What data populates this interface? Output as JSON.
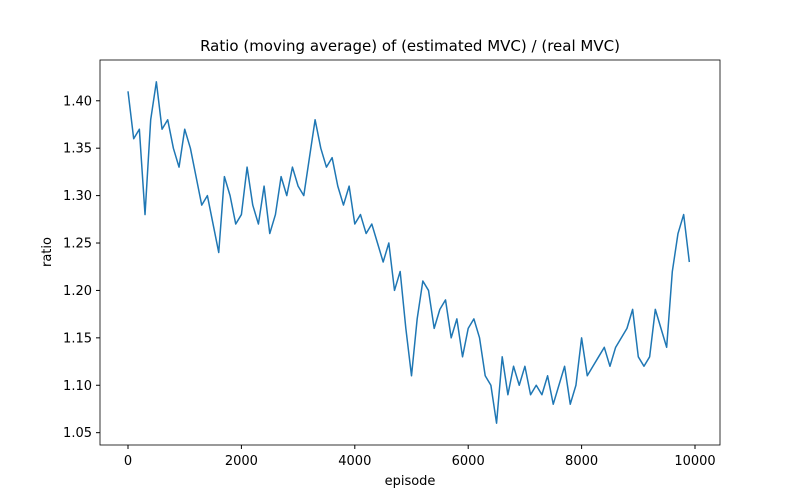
{
  "chart_data": {
    "type": "line",
    "title": "Ratio (moving average) of (estimated MVC) / (real MVC)",
    "xlabel": "episode",
    "ylabel": "ratio",
    "color": "#1f77b4",
    "x": [
      0,
      100,
      200,
      300,
      400,
      500,
      600,
      700,
      800,
      900,
      1000,
      1100,
      1200,
      1300,
      1400,
      1500,
      1600,
      1700,
      1800,
      1900,
      2000,
      2100,
      2200,
      2300,
      2400,
      2500,
      2600,
      2700,
      2800,
      2900,
      3000,
      3100,
      3200,
      3300,
      3400,
      3500,
      3600,
      3700,
      3800,
      3900,
      4000,
      4100,
      4200,
      4300,
      4400,
      4500,
      4600,
      4700,
      4800,
      4900,
      5000,
      5100,
      5200,
      5300,
      5400,
      5500,
      5600,
      5700,
      5800,
      5900,
      6000,
      6100,
      6200,
      6300,
      6400,
      6500,
      6600,
      6700,
      6800,
      6900,
      7000,
      7100,
      7200,
      7300,
      7400,
      7500,
      7600,
      7700,
      7800,
      7900,
      8000,
      8100,
      8200,
      8300,
      8400,
      8500,
      8600,
      8700,
      8800,
      8900,
      9000,
      9100,
      9200,
      9300,
      9400,
      9500,
      9600,
      9700,
      9800,
      9900
    ],
    "values": [
      1.41,
      1.36,
      1.37,
      1.28,
      1.38,
      1.42,
      1.37,
      1.38,
      1.35,
      1.33,
      1.37,
      1.35,
      1.32,
      1.29,
      1.3,
      1.27,
      1.24,
      1.32,
      1.3,
      1.27,
      1.28,
      1.33,
      1.29,
      1.27,
      1.31,
      1.26,
      1.28,
      1.32,
      1.3,
      1.33,
      1.31,
      1.3,
      1.34,
      1.38,
      1.35,
      1.33,
      1.34,
      1.31,
      1.29,
      1.31,
      1.27,
      1.28,
      1.26,
      1.27,
      1.25,
      1.23,
      1.25,
      1.2,
      1.22,
      1.16,
      1.11,
      1.17,
      1.21,
      1.2,
      1.16,
      1.18,
      1.19,
      1.15,
      1.17,
      1.13,
      1.16,
      1.17,
      1.15,
      1.11,
      1.1,
      1.06,
      1.13,
      1.09,
      1.12,
      1.1,
      1.12,
      1.09,
      1.1,
      1.09,
      1.11,
      1.08,
      1.1,
      1.12,
      1.08,
      1.1,
      1.15,
      1.11,
      1.12,
      1.13,
      1.14,
      1.12,
      1.14,
      1.15,
      1.16,
      1.18,
      1.13,
      1.12,
      1.13,
      1.18,
      1.16,
      1.14,
      1.22,
      1.26,
      1.28,
      1.23
    ],
    "xlim": [
      -494,
      10441
    ],
    "ylim": [
      1.037,
      1.443
    ],
    "xticks": [
      0,
      2000,
      4000,
      6000,
      8000,
      10000
    ],
    "yticks": [
      1.05,
      {
        "value": 1.1,
        "label": "1.10"
      },
      1.15,
      {
        "value": 1.2,
        "label": "1.20"
      },
      1.25,
      {
        "value": 1.3,
        "label": "1.30"
      },
      1.35,
      {
        "value": 1.4,
        "label": "1.40"
      }
    ]
  }
}
